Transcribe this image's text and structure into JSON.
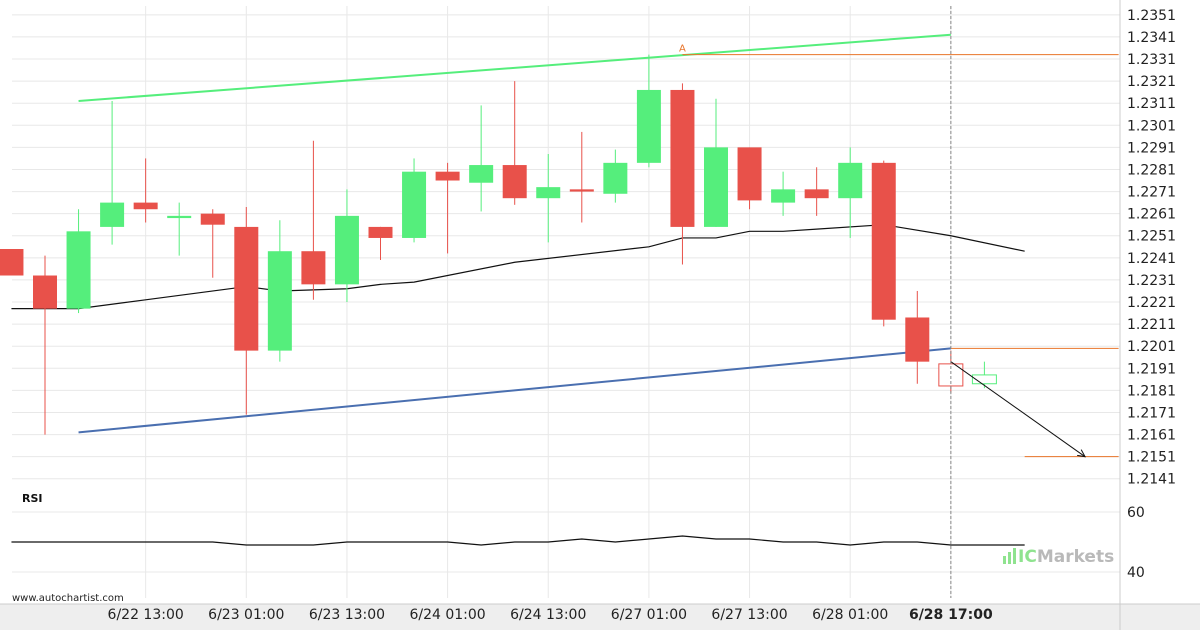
{
  "chart_data": {
    "type": "candlestick",
    "title": "",
    "symbol": "",
    "timeframe": "",
    "y_ticks": [
      "1.2351",
      "1.2341",
      "1.2331",
      "1.2321",
      "1.2311",
      "1.2301",
      "1.2291",
      "1.2281",
      "1.2271",
      "1.2261",
      "1.2251",
      "1.2241",
      "1.2231",
      "1.2221",
      "1.2211",
      "1.2201",
      "1.2191",
      "1.2181",
      "1.2171",
      "1.2161",
      "1.2151",
      "1.2141"
    ],
    "ylim": [
      1.2135,
      1.2355
    ],
    "x_ticks": [
      {
        "label": "6/22 13:00",
        "index": 3,
        "bold": false
      },
      {
        "label": "6/23 01:00",
        "index": 6,
        "bold": false
      },
      {
        "label": "6/23 13:00",
        "index": 9,
        "bold": false
      },
      {
        "label": "6/24 01:00",
        "index": 12,
        "bold": false
      },
      {
        "label": "6/24 13:00",
        "index": 15,
        "bold": false
      },
      {
        "label": "6/27 01:00",
        "index": 18,
        "bold": false
      },
      {
        "label": "6/27 13:00",
        "index": 21,
        "bold": false
      },
      {
        "label": "6/28 01:00",
        "index": 24,
        "bold": false
      },
      {
        "label": "6/28 17:00",
        "index": 27,
        "bold": true
      }
    ],
    "candles": [
      {
        "o": 1.2245,
        "h": 1.2245,
        "l": 1.2233,
        "c": 1.2233
      },
      {
        "o": 1.2233,
        "h": 1.2242,
        "l": 1.2161,
        "c": 1.2218
      },
      {
        "o": 1.2218,
        "h": 1.2263,
        "l": 1.2216,
        "c": 1.2253
      },
      {
        "o": 1.2255,
        "h": 1.2312,
        "l": 1.2247,
        "c": 1.2266
      },
      {
        "o": 1.2266,
        "h": 1.2286,
        "l": 1.2257,
        "c": 1.2263
      },
      {
        "o": 1.2259,
        "h": 1.2266,
        "l": 1.2242,
        "c": 1.226
      },
      {
        "o": 1.2261,
        "h": 1.2263,
        "l": 1.2232,
        "c": 1.2256
      },
      {
        "o": 1.2255,
        "h": 1.2264,
        "l": 1.217,
        "c": 1.2199
      },
      {
        "o": 1.2199,
        "h": 1.2258,
        "l": 1.2194,
        "c": 1.2244
      },
      {
        "o": 1.2244,
        "h": 1.2294,
        "l": 1.2222,
        "c": 1.2229
      },
      {
        "o": 1.2229,
        "h": 1.2272,
        "l": 1.2221,
        "c": 1.226
      },
      {
        "o": 1.2255,
        "h": 1.2255,
        "l": 1.224,
        "c": 1.225
      },
      {
        "o": 1.225,
        "h": 1.2286,
        "l": 1.2248,
        "c": 1.228
      },
      {
        "o": 1.228,
        "h": 1.2284,
        "l": 1.2243,
        "c": 1.2276
      },
      {
        "o": 1.2275,
        "h": 1.231,
        "l": 1.2262,
        "c": 1.2283
      },
      {
        "o": 1.2283,
        "h": 1.2321,
        "l": 1.2265,
        "c": 1.2268
      },
      {
        "o": 1.2268,
        "h": 1.2288,
        "l": 1.2248,
        "c": 1.2273
      },
      {
        "o": 1.2272,
        "h": 1.2298,
        "l": 1.2257,
        "c": 1.2271
      },
      {
        "o": 1.227,
        "h": 1.229,
        "l": 1.2266,
        "c": 1.2284
      },
      {
        "o": 1.2284,
        "h": 1.2333,
        "l": 1.2282,
        "c": 1.2317
      },
      {
        "o": 1.2317,
        "h": 1.232,
        "l": 1.2238,
        "c": 1.2255
      },
      {
        "o": 1.2255,
        "h": 1.2313,
        "l": 1.2255,
        "c": 1.2291
      },
      {
        "o": 1.2291,
        "h": 1.2291,
        "l": 1.2263,
        "c": 1.2267
      },
      {
        "o": 1.2266,
        "h": 1.228,
        "l": 1.226,
        "c": 1.2272
      },
      {
        "o": 1.2272,
        "h": 1.2282,
        "l": 1.226,
        "c": 1.2268
      },
      {
        "o": 1.2268,
        "h": 1.2291,
        "l": 1.225,
        "c": 1.2284
      },
      {
        "o": 1.2284,
        "h": 1.2285,
        "l": 1.221,
        "c": 1.2213
      },
      {
        "o": 1.2214,
        "h": 1.2226,
        "l": 1.2184,
        "c": 1.2194
      },
      {
        "o": 1.2193,
        "h": 1.2199,
        "l": 1.218,
        "c": 1.2183,
        "hollow": true
      },
      {
        "o": 1.2184,
        "h": 1.2194,
        "l": 1.2182,
        "c": 1.2188,
        "hollow": true
      }
    ],
    "moving_average": [
      {
        "index": -1,
        "y": 1.2218
      },
      {
        "index": 1,
        "y": 1.2218
      },
      {
        "index": 3,
        "y": 1.2222
      },
      {
        "index": 6,
        "y": 1.2228
      },
      {
        "index": 7,
        "y": 1.2226
      },
      {
        "index": 9,
        "y": 1.2227
      },
      {
        "index": 10,
        "y": 1.2229
      },
      {
        "index": 11,
        "y": 1.223
      },
      {
        "index": 14,
        "y": 1.2239
      },
      {
        "index": 18,
        "y": 1.2246
      },
      {
        "index": 19,
        "y": 1.225
      },
      {
        "index": 20,
        "y": 1.225
      },
      {
        "index": 21,
        "y": 1.2253
      },
      {
        "index": 22,
        "y": 1.2253
      },
      {
        "index": 23,
        "y": 1.2254
      },
      {
        "index": 25,
        "y": 1.2256
      },
      {
        "index": 27,
        "y": 1.2251
      },
      {
        "index": 29.2,
        "y": 1.2244
      }
    ],
    "channel_upper": {
      "start": {
        "index": 1,
        "y": 1.2312
      },
      "end": {
        "index": 27,
        "y": 1.2342
      }
    },
    "channel_lower": {
      "start": {
        "index": 1,
        "y": 1.2162
      },
      "end": {
        "index": 27,
        "y": 1.22
      }
    },
    "levels": [
      {
        "y": 1.2333,
        "from_index": 19,
        "to_index": 32
      },
      {
        "y": 1.22,
        "from_index": 27,
        "to_index": 32
      },
      {
        "y": 1.2151,
        "from_index": 29.2,
        "to_index": 32
      }
    ],
    "projection": {
      "start": {
        "index": 27,
        "y": 1.2194
      },
      "end": {
        "index": 31,
        "y": 1.2151
      }
    },
    "pattern_point_label": "A",
    "pattern_point": {
      "index": 19,
      "y": 1.2333
    },
    "current_index": 27,
    "rsi": {
      "label": "RSI",
      "y_ticks": [
        "60",
        "40"
      ],
      "ylim": [
        36,
        64
      ],
      "values": [
        {
          "index": -1,
          "y": 50
        },
        {
          "index": 5,
          "y": 50
        },
        {
          "index": 6,
          "y": 49
        },
        {
          "index": 8,
          "y": 49
        },
        {
          "index": 9,
          "y": 50
        },
        {
          "index": 12,
          "y": 50
        },
        {
          "index": 13,
          "y": 49
        },
        {
          "index": 14,
          "y": 50
        },
        {
          "index": 15,
          "y": 50
        },
        {
          "index": 16,
          "y": 51
        },
        {
          "index": 17,
          "y": 50
        },
        {
          "index": 18,
          "y": 51
        },
        {
          "index": 19,
          "y": 52
        },
        {
          "index": 20,
          "y": 51
        },
        {
          "index": 21,
          "y": 51
        },
        {
          "index": 22,
          "y": 50
        },
        {
          "index": 23,
          "y": 50
        },
        {
          "index": 24,
          "y": 49
        },
        {
          "index": 25,
          "y": 50
        },
        {
          "index": 26,
          "y": 50
        },
        {
          "index": 27,
          "y": 49
        },
        {
          "index": 29.2,
          "y": 49
        }
      ]
    },
    "colors": {
      "bull": "#55ee7c",
      "bear": "#e8514a",
      "upper_channel": "#55ee7c",
      "lower_channel": "#4a6fb0",
      "level": "#e8742a",
      "ma": "#111111",
      "grid": "#e8e8e8"
    },
    "watermark": "www.autochartist.com",
    "brand": {
      "prefix": "IC",
      "name": "Markets"
    }
  }
}
